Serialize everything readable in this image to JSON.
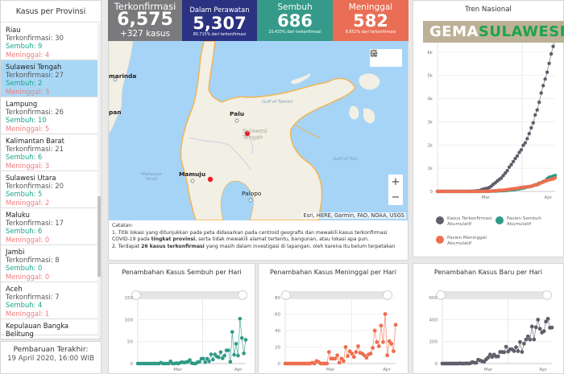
{
  "provinces": {
    "title": "Kasus per Provinsi",
    "conf_prefix": "Terkonfirmasi: ",
    "rec_prefix": "Sembuh: ",
    "dead_prefix": "Meninggal: ",
    "items": [
      {
        "name": "Riau",
        "confirmed": "Terkonfirmasi: 30",
        "recovered": "Sembuh: 9",
        "deaths": "Meninggal: 4",
        "selected": false
      },
      {
        "name": "Sulawesi Tengah",
        "confirmed": "Terkonfirmasi: 27",
        "recovered": "Sembuh: 2",
        "deaths": "Meninggal: 3",
        "selected": true
      },
      {
        "name": "Lampung",
        "confirmed": "Terkonfirmasi: 26",
        "recovered": "Sembuh: 10",
        "deaths": "Meninggal: 5",
        "selected": false
      },
      {
        "name": "Kalimantan Barat",
        "confirmed": "Terkonfirmasi: 21",
        "recovered": "Sembuh: 6",
        "deaths": "Meninggal: 3",
        "selected": false
      },
      {
        "name": "Sulawesi Utara",
        "confirmed": "Terkonfirmasi: 20",
        "recovered": "Sembuh: 5",
        "deaths": "Meninggal: 2",
        "selected": false
      },
      {
        "name": "Maluku",
        "confirmed": "Terkonfirmasi: 17",
        "recovered": "Sembuh: 6",
        "deaths": "Meninggal: 0",
        "selected": false
      },
      {
        "name": "Jambi",
        "confirmed": "Terkonfirmasi: 8",
        "recovered": "Sembuh: 0",
        "deaths": "Meninggal: 0",
        "selected": false
      },
      {
        "name": "Aceh",
        "confirmed": "Terkonfirmasi: 7",
        "recovered": "Sembuh: 4",
        "deaths": "Meninggal: 1",
        "selected": false
      },
      {
        "name": "Kepulauan Bangka Belitung",
        "confirmed": "",
        "recovered": "",
        "deaths": "",
        "selected": false
      }
    ]
  },
  "update": {
    "title": "Pembaruan Terakhir:",
    "value": "19 April 2020, 16:00 WIB"
  },
  "stats": {
    "confirmed": {
      "label": "Terkonfirmasi",
      "value": "6,575",
      "sub": "+327 kasus",
      "color": "#7a7a7d"
    },
    "in_care": {
      "label": "Dalam Perawatan",
      "value": "5,307",
      "sub": "80.715% dari terkonfirmasi",
      "color": "#2a3281"
    },
    "recovered": {
      "label": "Sembuh",
      "value": "686",
      "sub": "10.433% dari terkonfirmasi",
      "color": "#359a89"
    },
    "deaths": {
      "label": "Meninggal",
      "value": "582",
      "sub": "8.852% dari terkonfirmasi",
      "color": "#e96e55"
    }
  },
  "map": {
    "labels": {
      "samarinda": "marinda",
      "balikpapan": "pan",
      "palu": "Palu",
      "mamuju": "Mamuju",
      "palopo": "Palopo",
      "region_line1": "Sulawesi",
      "region_line2": "Tengah",
      "gulf_tomini": "Gulf of Tomini",
      "gulf_tolo": "Gulf of Tolo",
      "makassar_1": "Makassar",
      "makassar_2": "Strait"
    },
    "home_icon": "home-icon",
    "legend_icon": "list-icon",
    "zoom_in": "+",
    "zoom_out": "−",
    "attribution": "Esri, HERE, Garmin, FAO, NOAA, USGS"
  },
  "notes": {
    "title": "Catatan:",
    "line1": "1. Titik lokasi yang ditunjukkan pada peta didasarkan pada centroid geografis dan mewakili kasus terkonfirmasi COVID-19 pada ",
    "line1_bold": "tingkat provinsi",
    "line1_end": ", serta tidak mewakili alamat tertentu, bangunan, atau lokasi apa pun.",
    "line2_start": "2. Terdapat ",
    "line2_bold": "26 kasus terkonfirmasi",
    "line2_end": " yang masih dalam investigasi di lapangan, oleh karena itu belum terpetakan"
  },
  "brand": {
    "part1": "GEMA",
    "part2": "SULAWESI"
  },
  "chart_data": [
    {
      "id": "trend",
      "type": "line",
      "title": "Tren Nasional",
      "x_ticks": [
        "Mar",
        "Apr"
      ],
      "y_ticks": [
        "0",
        "1k",
        "2k",
        "3k",
        "4k",
        "5k",
        "6k"
      ],
      "ylim": [
        0,
        7000
      ],
      "legend": [
        "Kasus Terkonfirmasi Akumulatif",
        "Pasien Sembuh Akumulatif",
        "Pasien Meninggal Akumulatif"
      ],
      "legend_position": "bottom",
      "series": [
        {
          "name": "Kasus Terkonfirmasi Akumulatif",
          "color": "#5f5f6b",
          "values": [
            0,
            0,
            0,
            0,
            0,
            0,
            0,
            0,
            0,
            0,
            0,
            0,
            0,
            2,
            2,
            2,
            4,
            4,
            6,
            19,
            27,
            34,
            69,
            96,
            117,
            134,
            172,
            227,
            309,
            369,
            450,
            514,
            579,
            686,
            790,
            893,
            1046,
            1155,
            1285,
            1414,
            1528,
            1677,
            1790,
            1986,
            2092,
            2273,
            2491,
            2738,
            2956,
            3293,
            3512,
            3842,
            4241,
            4557,
            4839,
            5136,
            5516,
            5923,
            6248,
            6575
          ]
        },
        {
          "name": "Pasien Sembuh Akumulatif",
          "color": "#2f9a86",
          "values": [
            0,
            0,
            0,
            0,
            0,
            0,
            0,
            0,
            0,
            0,
            0,
            0,
            0,
            0,
            0,
            0,
            0,
            0,
            0,
            2,
            2,
            2,
            3,
            5,
            8,
            8,
            8,
            11,
            15,
            16,
            20,
            29,
            30,
            31,
            35,
            46,
            59,
            64,
            75,
            81,
            103,
            112,
            134,
            150,
            164,
            192,
            204,
            222,
            252,
            282,
            286,
            359,
            380,
            426,
            446,
            548,
            607,
            631,
            656,
            686
          ]
        },
        {
          "name": "Pasien Meninggal Akumulatif",
          "color": "#ee6e4f",
          "values": [
            0,
            0,
            0,
            0,
            0,
            0,
            0,
            0,
            0,
            0,
            0,
            0,
            0,
            0,
            0,
            0,
            0,
            0,
            0,
            0,
            0,
            1,
            4,
            5,
            5,
            5,
            7,
            19,
            25,
            32,
            38,
            48,
            49,
            55,
            58,
            78,
            87,
            102,
            114,
            122,
            136,
            157,
            170,
            181,
            191,
            198,
            209,
            221,
            240,
            280,
            306,
            327,
            373,
            399,
            459,
            469,
            496,
            520,
            535,
            582
          ]
        }
      ]
    },
    {
      "id": "recovered_daily",
      "type": "line",
      "title": "Penambahan Kasus Sembuh per Hari",
      "x_ticks": [
        "Mar",
        "Apr"
      ],
      "y_ticks": [
        "0",
        "50",
        "100",
        "150"
      ],
      "ylim": [
        0,
        150
      ],
      "color": "#2f9a86",
      "values": [
        0,
        0,
        0,
        0,
        0,
        0,
        0,
        0,
        0,
        0,
        0,
        0,
        2,
        0,
        0,
        0,
        0,
        5,
        0,
        0,
        1,
        0,
        2,
        3,
        2,
        3,
        4,
        8,
        1,
        0,
        0,
        3,
        4,
        11,
        11,
        3,
        11,
        5,
        21,
        9,
        21,
        16,
        14,
        26,
        12,
        18,
        30,
        30,
        4,
        72,
        20,
        45,
        18,
        102,
        58,
        23,
        54
      ]
    },
    {
      "id": "deaths_daily",
      "type": "line",
      "title": "Penambahan Kasus Meninggal per Hari",
      "x_ticks": [
        "Mar",
        "Apr"
      ],
      "y_ticks": [
        "0",
        "20",
        "40",
        "60",
        "80"
      ],
      "ylim": [
        0,
        80
      ],
      "color": "#ee6e4f",
      "values": [
        0,
        0,
        0,
        0,
        0,
        0,
        0,
        0,
        0,
        0,
        0,
        0,
        0,
        1,
        0,
        3,
        2,
        0,
        0,
        0,
        0,
        14,
        6,
        6,
        6,
        10,
        1,
        6,
        3,
        20,
        9,
        15,
        12,
        8,
        14,
        21,
        13,
        12,
        10,
        7,
        11,
        12,
        19,
        40,
        26,
        21,
        46,
        26,
        60,
        10,
        27,
        24,
        15,
        47
      ]
    },
    {
      "id": "new_daily",
      "type": "line",
      "title": "Penambahan Kasus Baru per Hari",
      "x_ticks": [
        "Mar",
        "Apr"
      ],
      "y_ticks": [
        "0",
        "200",
        "400",
        "600"
      ],
      "ylim": [
        0,
        600
      ],
      "color": "#5f5f6b",
      "values": [
        0,
        0,
        0,
        0,
        0,
        0,
        0,
        0,
        0,
        2,
        0,
        0,
        2,
        0,
        2,
        13,
        8,
        7,
        35,
        27,
        21,
        17,
        38,
        55,
        82,
        60,
        81,
        64,
        65,
        106,
        105,
        103,
        153,
        109,
        130,
        129,
        114,
        149,
        113,
        196,
        106,
        181,
        218,
        247,
        218,
        337,
        219,
        330,
        399,
        316,
        282,
        294,
        381,
        407,
        326,
        327
      ]
    }
  ]
}
